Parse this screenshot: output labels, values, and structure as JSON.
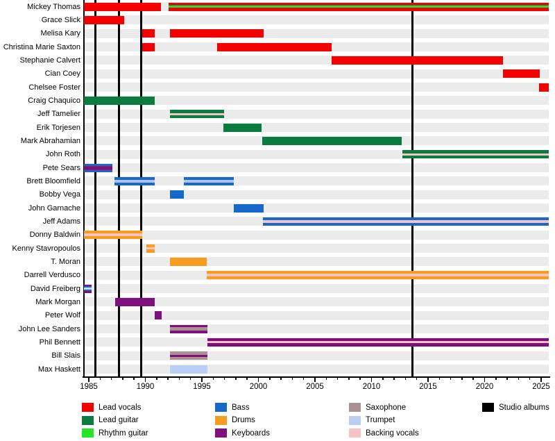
{
  "colors": {
    "lead_vocals": "#f40000",
    "lead_guitar": "#0c7b40",
    "rhythm_guitar": "#28e428",
    "bass": "#1669c8",
    "drums": "#f79c1e",
    "keyboards": "#7d107d",
    "saxophone": "#a89190",
    "trumpet": "#b9cef2",
    "backing_vocals": "#f5c3c1",
    "studio_albums": "#000000",
    "sears_blend": "#9c1766",
    "freiberg_light": "#ccdaf5",
    "bloomfield_light": "#b0c3ea",
    "row_band": "#ebebeb"
  },
  "chart_data": {
    "type": "timeline",
    "x_axis": {
      "min": 1984.55,
      "max": 2025.68,
      "tick_labels": [
        "1985",
        "1990",
        "1995",
        "2000",
        "2005",
        "2010",
        "2015",
        "2020",
        "2025"
      ],
      "minor_tick_interval_years": 1,
      "grid": false
    },
    "album_years": [
      1985.6,
      1987.65,
      1989.62,
      2013.65
    ],
    "members": [
      {
        "name": "Mickey Thomas",
        "bars": [
          {
            "from": 1984.55,
            "to": 1991.4,
            "stripes": [
              [
                "lead_vocals",
                1
              ]
            ]
          },
          {
            "from": 1992.05,
            "to": 2025.68,
            "stripes": [
              [
                "lead_vocals",
                3
              ],
              [
                "lead_guitar",
                1.2
              ],
              [
                "rhythm_guitar",
                3
              ],
              [
                "lead_vocals",
                3.8
              ]
            ]
          }
        ]
      },
      {
        "name": "Grace Slick",
        "bars": [
          {
            "from": 1984.55,
            "to": 1988.15,
            "stripes": [
              [
                "lead_vocals",
                1
              ]
            ]
          }
        ]
      },
      {
        "name": "Melisa Kary",
        "bars": [
          {
            "from": 1989.7,
            "to": 1990.85,
            "stripes": [
              [
                "lead_vocals",
                1
              ]
            ]
          },
          {
            "from": 1992.2,
            "to": 2000.45,
            "stripes": [
              [
                "lead_vocals",
                1
              ]
            ]
          }
        ]
      },
      {
        "name": "Christina Marie Saxton",
        "bars": [
          {
            "from": 1989.7,
            "to": 1990.85,
            "stripes": [
              [
                "lead_vocals",
                1
              ]
            ]
          },
          {
            "from": 1996.35,
            "to": 2006.45,
            "stripes": [
              [
                "lead_vocals",
                1
              ]
            ]
          }
        ]
      },
      {
        "name": "Stephanie Calvert",
        "bars": [
          {
            "from": 2006.45,
            "to": 2021.6,
            "stripes": [
              [
                "lead_vocals",
                1
              ]
            ]
          }
        ]
      },
      {
        "name": "Cian Coey",
        "bars": [
          {
            "from": 2021.6,
            "to": 2024.9,
            "stripes": [
              [
                "lead_vocals",
                1
              ]
            ]
          }
        ]
      },
      {
        "name": "Chelsee Foster",
        "bars": [
          {
            "from": 2024.8,
            "to": 2025.68,
            "stripes": [
              [
                "lead_vocals",
                1
              ]
            ]
          }
        ]
      },
      {
        "name": "Craig Chaquico",
        "bars": [
          {
            "from": 1984.55,
            "to": 1990.8,
            "stripes": [
              [
                "lead_guitar",
                1
              ]
            ]
          }
        ]
      },
      {
        "name": "Jeff Tamelier",
        "bars": [
          {
            "from": 1992.2,
            "to": 1996.95,
            "stripes": [
              [
                "lead_guitar",
                4
              ],
              [
                "backing_vocals",
                3
              ],
              [
                "lead_guitar",
                4
              ]
            ]
          }
        ]
      },
      {
        "name": "Erik Torjesen",
        "bars": [
          {
            "from": 1996.9,
            "to": 2000.25,
            "stripes": [
              [
                "lead_guitar",
                1
              ]
            ]
          }
        ]
      },
      {
        "name": "Mark Abrahamian",
        "bars": [
          {
            "from": 2000.35,
            "to": 2012.65,
            "stripes": [
              [
                "lead_guitar",
                1
              ]
            ]
          }
        ]
      },
      {
        "name": "John Roth",
        "bars": [
          {
            "from": 2012.7,
            "to": 2025.68,
            "stripes": [
              [
                "lead_guitar",
                4
              ],
              [
                "backing_vocals",
                3
              ],
              [
                "lead_guitar",
                4
              ]
            ]
          }
        ]
      },
      {
        "name": "Pete Sears",
        "bars": [
          {
            "from": 1984.55,
            "to": 1987.1,
            "stripes": [
              [
                "bass",
                3
              ],
              [
                "sears_blend",
                1
              ],
              [
                "keyboards",
                4
              ],
              [
                "sears_blend",
                1
              ],
              [
                "bass",
                3
              ]
            ]
          }
        ]
      },
      {
        "name": "Brett Bloomfield",
        "bars": [
          {
            "from": 1987.3,
            "to": 1990.8,
            "stripes": [
              [
                "bass",
                3.5
              ],
              [
                "bloomfield_light",
                3
              ],
              [
                "bass",
                3.5
              ]
            ]
          },
          {
            "from": 1993.4,
            "to": 1997.8,
            "stripes": [
              [
                "bass",
                3.5
              ],
              [
                "bloomfield_light",
                3
              ],
              [
                "bass",
                3.5
              ]
            ]
          }
        ]
      },
      {
        "name": "Bobby Vega",
        "bars": [
          {
            "from": 1992.2,
            "to": 1993.4,
            "stripes": [
              [
                "bass",
                1
              ]
            ]
          }
        ]
      },
      {
        "name": "John Garnache",
        "bars": [
          {
            "from": 1997.8,
            "to": 2000.45,
            "stripes": [
              [
                "bass",
                1
              ]
            ]
          }
        ]
      },
      {
        "name": "Jeff Adams",
        "bars": [
          {
            "from": 2000.4,
            "to": 2025.68,
            "stripes": [
              [
                "bass",
                4
              ],
              [
                "backing_vocals",
                3
              ],
              [
                "bass",
                4
              ]
            ]
          }
        ]
      },
      {
        "name": "Donny Baldwin",
        "bars": [
          {
            "from": 1984.55,
            "to": 1989.75,
            "stripes": [
              [
                "drums",
                3.5
              ],
              [
                "backing_vocals",
                3
              ],
              [
                "drums",
                3.5
              ]
            ]
          }
        ]
      },
      {
        "name": "Kenny Stavropoulos",
        "bars": [
          {
            "from": 1990.1,
            "to": 1990.85,
            "stripes": [
              [
                "drums",
                3.5
              ],
              [
                "backing_vocals",
                3
              ],
              [
                "drums",
                3.5
              ]
            ]
          }
        ]
      },
      {
        "name": "T. Moran",
        "bars": [
          {
            "from": 1992.2,
            "to": 1995.45,
            "stripes": [
              [
                "drums",
                1
              ]
            ]
          }
        ]
      },
      {
        "name": "Darrell Verdusco",
        "bars": [
          {
            "from": 1995.45,
            "to": 2025.68,
            "stripes": [
              [
                "drums",
                3.5
              ],
              [
                "backing_vocals",
                3
              ],
              [
                "drums",
                3.5
              ]
            ]
          }
        ]
      },
      {
        "name": "David Freiberg",
        "bars": [
          {
            "from": 1984.55,
            "to": 1985.25,
            "stripes": [
              [
                "keyboards",
                2.5
              ],
              [
                "bass",
                2
              ],
              [
                "freiberg_light",
                2
              ],
              [
                "bass",
                2
              ],
              [
                "keyboards",
                2.5
              ]
            ]
          }
        ]
      },
      {
        "name": "Mark Morgan",
        "bars": [
          {
            "from": 1987.35,
            "to": 1990.8,
            "stripes": [
              [
                "keyboards",
                1
              ]
            ]
          }
        ]
      },
      {
        "name": "Peter Wolf",
        "bars": [
          {
            "from": 1990.8,
            "to": 1991.45,
            "stripes": [
              [
                "keyboards",
                1
              ]
            ]
          }
        ]
      },
      {
        "name": "John Lee Sanders",
        "bars": [
          {
            "from": 1992.2,
            "to": 1995.5,
            "stripes": [
              [
                "keyboards",
                3
              ],
              [
                "saxophone",
                5
              ],
              [
                "keyboards",
                3
              ]
            ]
          }
        ]
      },
      {
        "name": "Phil Bennett",
        "bars": [
          {
            "from": 1995.5,
            "to": 2025.68,
            "stripes": [
              [
                "keyboards",
                4
              ],
              [
                "backing_vocals",
                3
              ],
              [
                "keyboards",
                4
              ]
            ]
          }
        ]
      },
      {
        "name": "Bill Slais",
        "bars": [
          {
            "from": 1992.2,
            "to": 1995.5,
            "stripes": [
              [
                "saxophone",
                4
              ],
              [
                "keyboards",
                3
              ],
              [
                "saxophone",
                4
              ]
            ]
          }
        ]
      },
      {
        "name": "Max Haskett",
        "bars": [
          {
            "from": 1992.2,
            "to": 1995.5,
            "stripes": [
              [
                "trumpet",
                1
              ]
            ]
          }
        ]
      }
    ],
    "legend_columns": [
      [
        {
          "label": "Lead vocals",
          "color_key": "lead_vocals"
        },
        {
          "label": "Lead guitar",
          "color_key": "lead_guitar"
        },
        {
          "label": "Rhythm guitar",
          "color_key": "rhythm_guitar"
        }
      ],
      [
        {
          "label": "Bass",
          "color_key": "bass"
        },
        {
          "label": "Drums",
          "color_key": "drums"
        },
        {
          "label": "Keyboards",
          "color_key": "keyboards"
        }
      ],
      [
        {
          "label": "Saxophone",
          "color_key": "saxophone"
        },
        {
          "label": "Trumpet",
          "color_key": "trumpet"
        },
        {
          "label": "Backing vocals",
          "color_key": "backing_vocals"
        }
      ],
      [
        {
          "label": "Studio albums",
          "color_key": "studio_albums"
        }
      ]
    ]
  }
}
